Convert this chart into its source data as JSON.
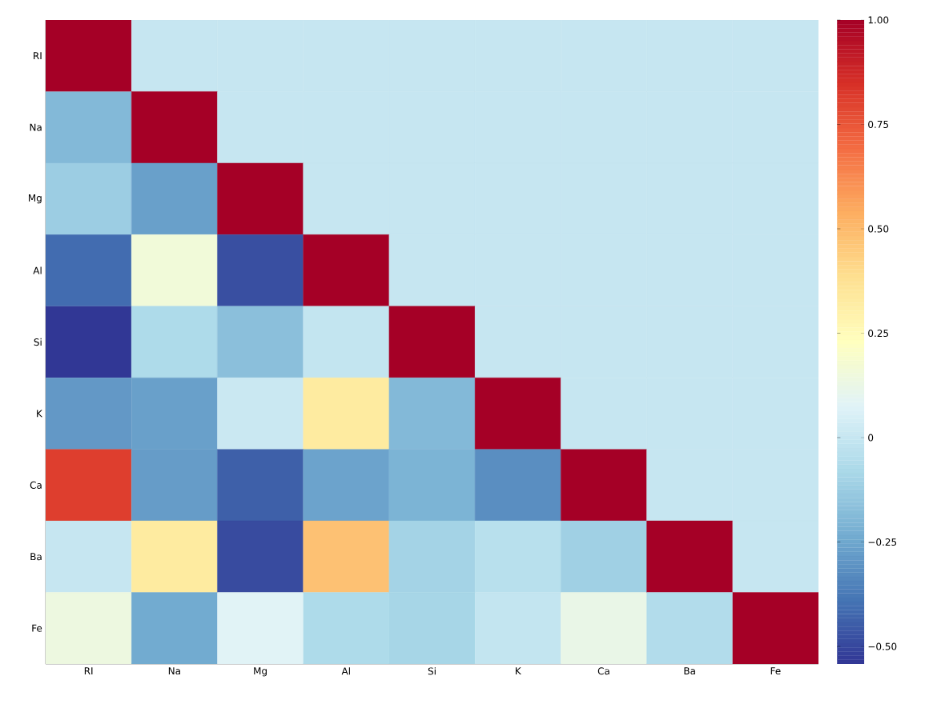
{
  "chart_data": {
    "type": "heatmap",
    "categories": [
      "RI",
      "Na",
      "Mg",
      "Al",
      "Si",
      "K",
      "Ca",
      "Ba",
      "Fe"
    ],
    "y_categories": [
      "RI",
      "Na",
      "Mg",
      "Al",
      "Si",
      "K",
      "Ca",
      "Ba",
      "Fe"
    ],
    "cells": [
      [
        1,
        0,
        0,
        0,
        0,
        0,
        0,
        0,
        0
      ],
      [
        -0.19,
        1,
        0,
        0,
        0,
        0,
        0,
        0,
        0
      ],
      [
        -0.12,
        -0.27,
        1,
        0,
        0,
        0,
        0,
        0,
        0
      ],
      [
        -0.41,
        0.16,
        -0.48,
        1,
        0,
        0,
        0,
        0,
        0
      ],
      [
        -0.54,
        -0.07,
        -0.17,
        -0.01,
        1,
        0,
        0,
        0,
        0
      ],
      [
        -0.29,
        -0.27,
        0.01,
        0.33,
        -0.19,
        1,
        0,
        0,
        0
      ],
      [
        0.81,
        -0.28,
        -0.44,
        -0.26,
        -0.21,
        -0.32,
        1,
        0,
        0
      ],
      [
        0.0,
        0.33,
        -0.49,
        0.48,
        -0.1,
        -0.04,
        -0.11,
        1,
        0
      ],
      [
        0.14,
        -0.24,
        0.08,
        -0.07,
        -0.09,
        -0.01,
        0.12,
        -0.06,
        1
      ]
    ],
    "clim": [
      -0.542,
      1.0
    ],
    "cticks": [
      {
        "value": -0.5,
        "label": "−0.50"
      },
      {
        "value": -0.25,
        "label": "−0.25"
      },
      0,
      {
        "value": 0.25,
        "label": "0.25"
      },
      {
        "value": 0.5,
        "label": "0.50"
      },
      {
        "value": 0.75,
        "label": "0.75"
      },
      {
        "value": 1,
        "label": "1.00"
      }
    ]
  }
}
